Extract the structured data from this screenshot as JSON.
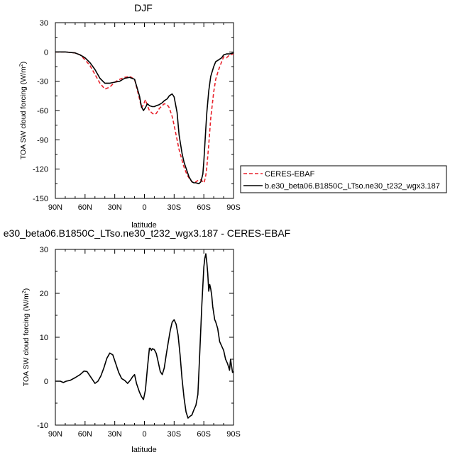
{
  "chart_data": [
    {
      "type": "line",
      "title": "DJF",
      "xlabel": "latitude",
      "ylabel": "TOA SW cloud forcing (W/m²)",
      "ylabel_main": "TOA SW cloud forcing (W/m",
      "ylabel_sup": "2",
      "ylabel_close": ")",
      "xlim": [
        90,
        -90
      ],
      "ylim": [
        -150,
        30
      ],
      "x_ticks": [
        {
          "v": 90,
          "label": "90N"
        },
        {
          "v": 60,
          "label": "60N"
        },
        {
          "v": 30,
          "label": "30N"
        },
        {
          "v": 0,
          "label": "0"
        },
        {
          "v": -30,
          "label": "30S"
        },
        {
          "v": -60,
          "label": "60S"
        },
        {
          "v": -90,
          "label": "90S"
        }
      ],
      "y_ticks": [
        30,
        0,
        -30,
        -60,
        -90,
        -120,
        -150
      ],
      "legend_position": "outside-right",
      "series": [
        {
          "name": "CERES-EBAF",
          "color": "#e8212b",
          "style": "dashed",
          "x": [
            90,
            80,
            70,
            65,
            60,
            55,
            50,
            45,
            40,
            35,
            30,
            25,
            20,
            15,
            10,
            5,
            3,
            1,
            -1,
            -3,
            -5,
            -8,
            -10,
            -12,
            -15,
            -18,
            -20,
            -23,
            -25,
            -28,
            -30,
            -33,
            -35,
            -38,
            -40,
            -43,
            -45,
            -48,
            -50,
            -52,
            -55,
            -57,
            -59,
            -60,
            -61,
            -62,
            -63,
            -65,
            -67,
            -70,
            -72,
            -75,
            -78,
            -80,
            -83,
            -86,
            -90
          ],
          "y": [
            0,
            0,
            -1,
            -3,
            -8,
            -14,
            -23,
            -32,
            -38,
            -36,
            -31,
            -28,
            -26,
            -25,
            -28,
            -48,
            -57,
            -54,
            -49,
            -55,
            -60,
            -63,
            -64,
            -63,
            -58,
            -55,
            -53,
            -54,
            -57,
            -66,
            -75,
            -90,
            -100,
            -111,
            -118,
            -126,
            -129,
            -133,
            -134,
            -133,
            -131,
            -131,
            -133,
            -134,
            -131,
            -126,
            -118,
            -95,
            -68,
            -41,
            -28,
            -18,
            -10,
            -5,
            -6,
            -3,
            -2
          ]
        },
        {
          "name": "b.e30_beta06.B1850C_LTso.ne30_t232_wgx3.187",
          "color": "#000000",
          "style": "solid",
          "x": [
            90,
            80,
            70,
            65,
            60,
            55,
            50,
            45,
            40,
            35,
            30,
            25,
            20,
            15,
            10,
            5,
            3,
            1,
            -1,
            -3,
            -5,
            -8,
            -10,
            -12,
            -15,
            -18,
            -20,
            -23,
            -25,
            -28,
            -30,
            -33,
            -35,
            -38,
            -40,
            -43,
            -45,
            -48,
            -50,
            -52,
            -55,
            -57,
            -59,
            -60,
            -61,
            -62,
            -63,
            -65,
            -67,
            -70,
            -72,
            -75,
            -78,
            -80,
            -83,
            -86,
            -90
          ],
          "y": [
            0,
            0,
            -1,
            -3,
            -6,
            -11,
            -18,
            -27,
            -32,
            -32,
            -31,
            -30,
            -27,
            -26,
            -28,
            -45,
            -56,
            -60,
            -57,
            -53,
            -55,
            -56,
            -56,
            -55,
            -54,
            -52,
            -50,
            -48,
            -45,
            -43,
            -46,
            -62,
            -85,
            -104,
            -113,
            -122,
            -128,
            -133,
            -134,
            -134,
            -135,
            -133,
            -125,
            -112,
            -95,
            -78,
            -62,
            -40,
            -25,
            -15,
            -10,
            -8,
            -6,
            -3,
            -2,
            -2,
            -1
          ]
        }
      ]
    },
    {
      "type": "line",
      "title": "e30_beta06.B1850C_LTso.ne30_t232_wgx3.187 - CERES-EBAF",
      "xlabel": "latitude",
      "ylabel": "TOA SW cloud forcing (W/m²)",
      "ylabel_main": "TOA SW cloud forcing (W/m",
      "ylabel_sup": "2",
      "ylabel_close": ")",
      "xlim": [
        90,
        -90
      ],
      "ylim": [
        -10,
        30
      ],
      "x_ticks": [
        {
          "v": 90,
          "label": "90N"
        },
        {
          "v": 60,
          "label": "60N"
        },
        {
          "v": 30,
          "label": "30N"
        },
        {
          "v": 0,
          "label": "0"
        },
        {
          "v": -30,
          "label": "30S"
        },
        {
          "v": -60,
          "label": "60S"
        },
        {
          "v": -90,
          "label": "90S"
        }
      ],
      "y_ticks": [
        30,
        20,
        10,
        0,
        -10
      ],
      "series": [
        {
          "name": "",
          "color": "#000000",
          "style": "solid",
          "x": [
            90,
            85,
            82,
            79,
            75,
            70,
            65,
            61,
            58,
            55,
            52,
            50,
            47,
            44,
            41,
            38,
            35,
            32,
            29,
            26,
            23,
            20,
            17,
            14,
            12,
            10,
            8,
            5,
            3,
            1,
            -1,
            -3,
            -5,
            -6,
            -7,
            -8,
            -10,
            -12,
            -14,
            -16,
            -18,
            -20,
            -22,
            -24,
            -26,
            -28,
            -30,
            -32,
            -34,
            -36,
            -38,
            -40,
            -42,
            -44,
            -46,
            -48,
            -50,
            -52,
            -54,
            -56,
            -58,
            -60,
            -61,
            -62,
            -63,
            -64,
            -65,
            -66,
            -67,
            -68,
            -69,
            -70,
            -71,
            -72,
            -74,
            -76,
            -78,
            -80,
            -82,
            -84,
            -86,
            -87,
            -88,
            -89,
            -90
          ],
          "y": [
            0,
            0,
            -0.3,
            0,
            0.2,
            0.8,
            1.5,
            2.3,
            2.2,
            1.2,
            0.2,
            -0.5,
            0,
            1.2,
            3,
            5.2,
            6.4,
            6,
            4,
            2,
            0.6,
            0.2,
            -0.5,
            0.3,
            1,
            1.5,
            -0.5,
            -2.5,
            -3.5,
            -4.2,
            -2,
            3,
            7.5,
            7.5,
            7,
            7.4,
            7.2,
            6.3,
            4.3,
            2.2,
            1.5,
            3,
            6,
            8.8,
            11.5,
            13.4,
            14,
            13,
            10.5,
            6,
            0.5,
            -3.8,
            -7,
            -8.4,
            -8,
            -7.7,
            -6.5,
            -5.5,
            -3,
            7,
            17.5,
            26,
            28,
            29,
            27,
            24.5,
            20.5,
            22,
            21,
            19.5,
            17,
            15.5,
            14,
            13.5,
            12,
            9,
            8,
            7,
            5,
            4,
            2.5,
            5,
            3.5,
            2,
            2.2
          ]
        }
      ]
    }
  ]
}
